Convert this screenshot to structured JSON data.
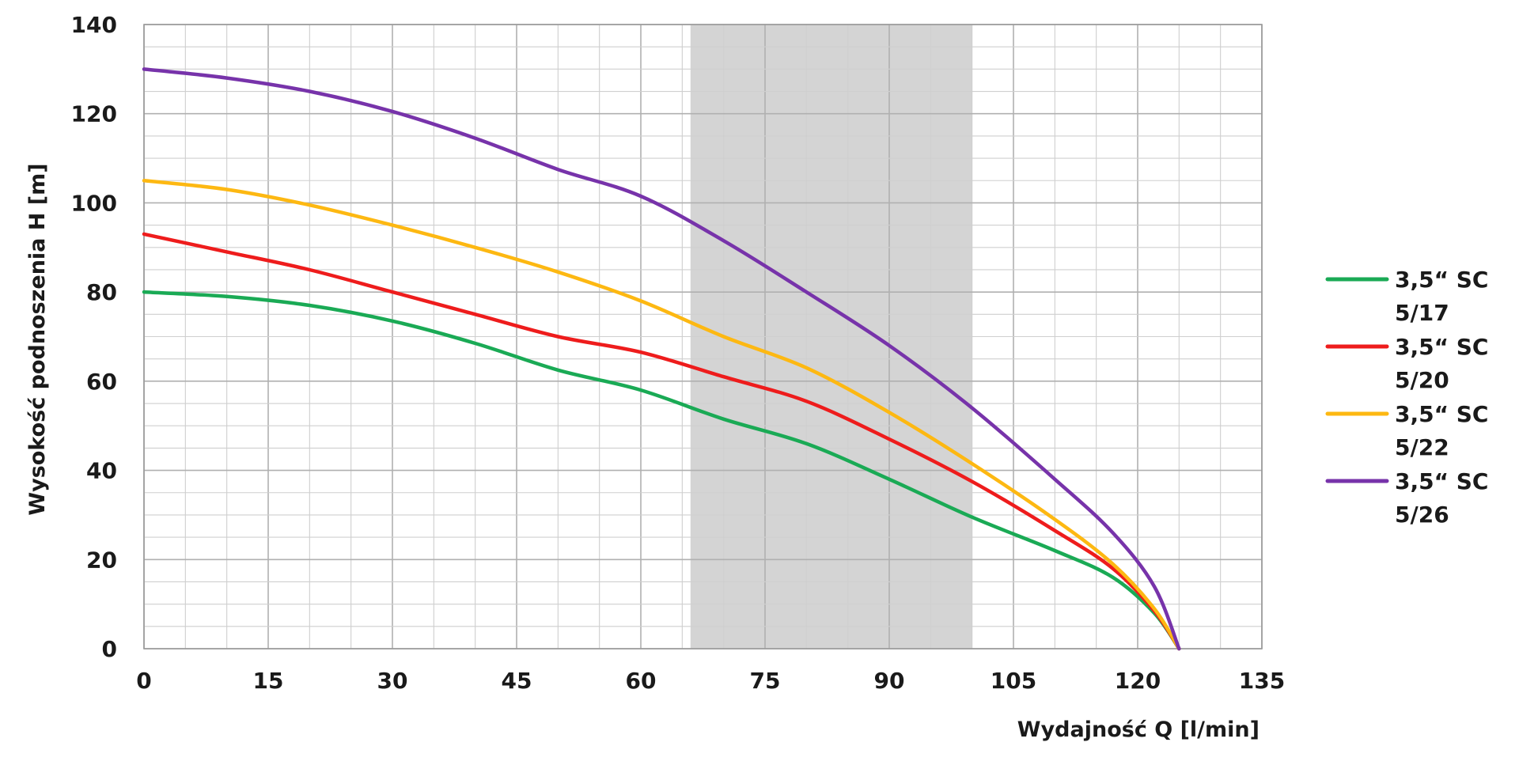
{
  "chart_data": {
    "type": "line",
    "title": "",
    "xlabel": "Wydajność Q [l/min]",
    "ylabel": "Wysokość podnoszenia H [m]",
    "xlim": [
      0,
      135
    ],
    "ylim": [
      0,
      140
    ],
    "x_ticks": [
      "0",
      "15",
      "30",
      "45",
      "60",
      "75",
      "90",
      "105",
      "120",
      "135"
    ],
    "y_ticks": [
      "0",
      "20",
      "40",
      "60",
      "80",
      "100",
      "120",
      "140"
    ],
    "grid": true,
    "legend_position": "right",
    "highlight_band": {
      "x_from": 66,
      "x_to": 100,
      "color": "#d4d4d4"
    },
    "series": [
      {
        "name_line1": "3,5“ SC",
        "name_line2": "5/17",
        "color": "#1aaa55",
        "points": [
          [
            0,
            80
          ],
          [
            10,
            79
          ],
          [
            20,
            77
          ],
          [
            30,
            73.5
          ],
          [
            40,
            68.5
          ],
          [
            50,
            62.5
          ],
          [
            60,
            58
          ],
          [
            70,
            51.5
          ],
          [
            80,
            46
          ],
          [
            90,
            38
          ],
          [
            100,
            29.5
          ],
          [
            110,
            22
          ],
          [
            117,
            16
          ],
          [
            122,
            8
          ],
          [
            125,
            0
          ]
        ]
      },
      {
        "name_line1": "3,5“ SC",
        "name_line2": "5/20",
        "color": "#ee1c1c",
        "points": [
          [
            0,
            93
          ],
          [
            10,
            89
          ],
          [
            20,
            85
          ],
          [
            30,
            80
          ],
          [
            40,
            75
          ],
          [
            50,
            70
          ],
          [
            60,
            66.5
          ],
          [
            70,
            61
          ],
          [
            80,
            55.5
          ],
          [
            90,
            47
          ],
          [
            100,
            37.5
          ],
          [
            110,
            26.5
          ],
          [
            117,
            18
          ],
          [
            122,
            8.5
          ],
          [
            125,
            0
          ]
        ]
      },
      {
        "name_line1": "3,5“ SC",
        "name_line2": "5/22",
        "color": "#fdb812",
        "points": [
          [
            0,
            105
          ],
          [
            10,
            103
          ],
          [
            20,
            99.5
          ],
          [
            30,
            95
          ],
          [
            40,
            90
          ],
          [
            50,
            84.5
          ],
          [
            60,
            78
          ],
          [
            70,
            70
          ],
          [
            80,
            63
          ],
          [
            90,
            53
          ],
          [
            100,
            41.5
          ],
          [
            110,
            29
          ],
          [
            117,
            19
          ],
          [
            122,
            9
          ],
          [
            125,
            0
          ]
        ]
      },
      {
        "name_line1": "3,5“ SC",
        "name_line2": "5/26",
        "color": "#7733aa",
        "points": [
          [
            0,
            130
          ],
          [
            10,
            128
          ],
          [
            20,
            125
          ],
          [
            30,
            120.5
          ],
          [
            40,
            114.5
          ],
          [
            50,
            107.5
          ],
          [
            60,
            101.5
          ],
          [
            70,
            91.5
          ],
          [
            80,
            80
          ],
          [
            90,
            68
          ],
          [
            100,
            54
          ],
          [
            110,
            38
          ],
          [
            117,
            26
          ],
          [
            122,
            14
          ],
          [
            125,
            0
          ]
        ]
      }
    ]
  }
}
